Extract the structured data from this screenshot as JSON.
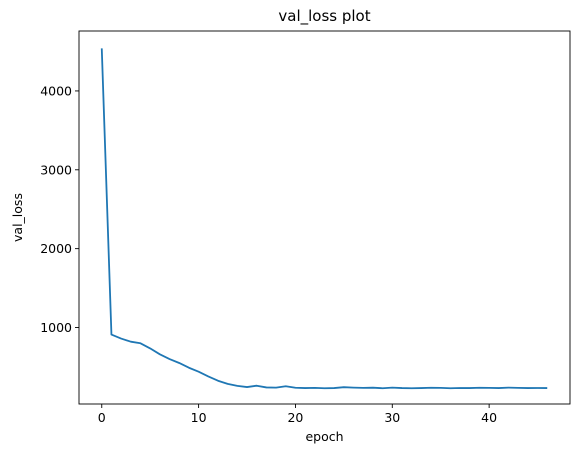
{
  "chart_data": {
    "type": "line",
    "title": "val_loss plot",
    "xlabel": "epoch",
    "ylabel": "val_loss",
    "xlim": [
      -2.35,
      48.35
    ],
    "ylim": [
      30,
      4760
    ],
    "xticks": [
      0,
      10,
      20,
      30,
      40
    ],
    "yticks": [
      1000,
      2000,
      3000,
      4000
    ],
    "grid": false,
    "series": [
      {
        "color": "#1f77b4",
        "x": [
          0,
          1,
          2,
          3,
          4,
          5,
          6,
          7,
          8,
          9,
          10,
          11,
          12,
          13,
          14,
          15,
          16,
          17,
          18,
          19,
          20,
          21,
          22,
          23,
          24,
          25,
          26,
          27,
          28,
          29,
          30,
          31,
          32,
          33,
          34,
          35,
          36,
          37,
          38,
          39,
          40,
          41,
          42,
          43,
          44,
          45,
          46
        ],
        "y": [
          4540,
          910,
          860,
          820,
          800,
          735,
          660,
          600,
          550,
          490,
          440,
          380,
          325,
          285,
          260,
          245,
          262,
          240,
          238,
          255,
          236,
          232,
          234,
          230,
          232,
          243,
          238,
          234,
          237,
          230,
          238,
          232,
          230,
          232,
          236,
          234,
          230,
          233,
          232,
          236,
          234,
          232,
          238,
          234,
          232,
          233,
          232
        ]
      }
    ]
  }
}
